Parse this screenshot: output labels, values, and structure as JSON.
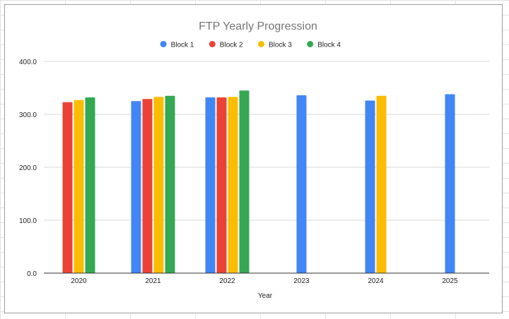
{
  "chart_data": {
    "type": "bar",
    "title": "FTP Yearly Progression",
    "xlabel": "Year",
    "ylabel": "",
    "ylim": [
      0,
      400
    ],
    "yticks": [
      "0.0",
      "100.0",
      "200.0",
      "300.0",
      "400.0"
    ],
    "categories": [
      "2020",
      "2021",
      "2022",
      "2023",
      "2024",
      "2025"
    ],
    "legend_position": "top",
    "grid": true,
    "series": [
      {
        "name": "Block 1",
        "color": "#4285f4",
        "values": [
          null,
          325,
          332,
          336,
          326,
          338
        ]
      },
      {
        "name": "Block 2",
        "color": "#ea4335",
        "values": [
          323,
          329,
          332,
          null,
          null,
          null
        ]
      },
      {
        "name": "Block 3",
        "color": "#fbbc04",
        "values": [
          327,
          333,
          333,
          null,
          335,
          null
        ]
      },
      {
        "name": "Block 4",
        "color": "#34a853",
        "values": [
          332,
          335,
          345,
          null,
          null,
          null
        ]
      }
    ]
  }
}
